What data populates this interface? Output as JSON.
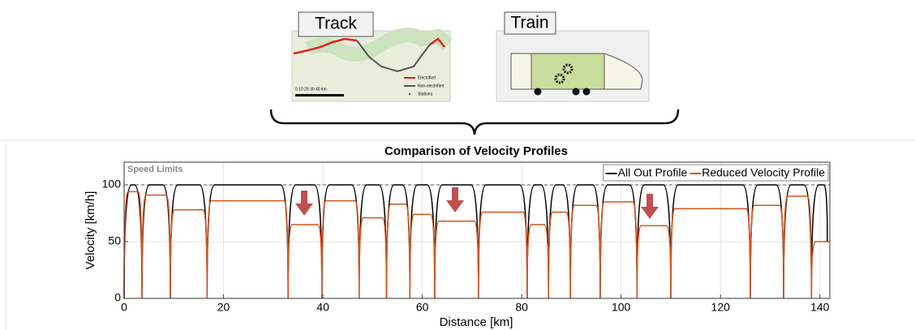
{
  "diagram": {
    "track": {
      "label": "Track",
      "legend": [
        "Electrified",
        "Non-electrified",
        "Stations"
      ],
      "scale": "0   10   20   30   40 km"
    },
    "train": {
      "label": "Train"
    }
  },
  "chart_data": {
    "type": "line",
    "title": "Comparison of Velocity Profiles",
    "x_label": "Distance [km]",
    "y_label": "Velocity [km/h]",
    "speed_limit": 100,
    "speed_limit_label": "Speed Limits",
    "xlim": [
      0,
      142
    ],
    "ylim": [
      0,
      120
    ],
    "xticks": [
      0,
      20,
      40,
      60,
      80,
      100,
      120,
      140
    ],
    "yticks": [
      0,
      50,
      100
    ],
    "grid": true,
    "legend": "top-right",
    "series": [
      {
        "name": "All Out Profile",
        "color": "#000000",
        "x": [
          0,
          1.5,
          2.1,
          3.6,
          5.1,
          7.8,
          9.3,
          10.8,
          15.2,
          16.7,
          18.2,
          31.5,
          33,
          34.5,
          38.3,
          39.8,
          41.3,
          45.8,
          47.3,
          48.8,
          51.3,
          52.8,
          54.3,
          56,
          57.5,
          59,
          61,
          62.5,
          64,
          69.8,
          71.3,
          72.8,
          79.6,
          81.1,
          82.6,
          83.9,
          85.4,
          86.9,
          88.3,
          89.8,
          91.3,
          94.3,
          95.8,
          97.3,
          101.7,
          103.2,
          104.7,
          108.5,
          110,
          111.5,
          124.5,
          126,
          127.5,
          131.2,
          132.7,
          134.2,
          136.8,
          138.3,
          139.8,
          140.8,
          141.5,
          142
        ],
        "values": [
          0,
          100,
          100,
          0,
          100,
          100,
          0,
          100,
          100,
          0,
          100,
          100,
          0,
          100,
          100,
          0,
          100,
          100,
          0,
          100,
          100,
          0,
          100,
          100,
          0,
          100,
          100,
          0,
          100,
          100,
          0,
          100,
          100,
          0,
          100,
          100,
          0,
          100,
          100,
          0,
          100,
          100,
          0,
          100,
          100,
          0,
          100,
          100,
          0,
          100,
          100,
          0,
          100,
          100,
          0,
          100,
          100,
          0,
          100,
          100,
          50,
          50
        ]
      },
      {
        "name": "Reduced Velocity Profile",
        "color": "#d95319",
        "x": [
          0,
          0.8,
          2.8,
          3.6,
          4.4,
          8.5,
          9.3,
          10.1,
          15.9,
          16.7,
          17.5,
          32.2,
          33,
          33.8,
          39,
          39.8,
          40.6,
          46.5,
          47.3,
          48.1,
          52,
          52.8,
          53.6,
          56.7,
          57.5,
          58.3,
          61.7,
          62.5,
          63.3,
          70.5,
          71.3,
          72.1,
          80.3,
          81.1,
          81.9,
          84.6,
          85.4,
          86.2,
          89,
          89.8,
          90.6,
          95,
          95.8,
          96.6,
          102.4,
          103.2,
          104,
          109.2,
          110,
          110.8,
          125.2,
          126,
          126.8,
          131.9,
          132.7,
          133.5,
          137.5,
          138.3,
          139.1,
          142
        ],
        "values": [
          0,
          94,
          94,
          0,
          91,
          91,
          0,
          78,
          78,
          0,
          86,
          86,
          0,
          65,
          65,
          0,
          86,
          86,
          0,
          71,
          71,
          0,
          83,
          83,
          0,
          74,
          74,
          0,
          68,
          68,
          0,
          76,
          76,
          0,
          65,
          65,
          0,
          76,
          76,
          0,
          82,
          82,
          0,
          85,
          85,
          0,
          64,
          64,
          0,
          79,
          79,
          0,
          82,
          82,
          0,
          90,
          90,
          0,
          50,
          50
        ]
      }
    ]
  }
}
